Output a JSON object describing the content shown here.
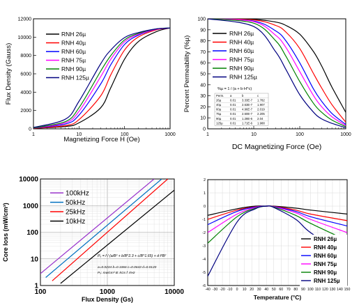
{
  "chart_data": [
    {
      "type": "line",
      "xlabel": "Magnetizing Force H (Oe)",
      "ylabel": "Flux Density (Gauss)",
      "xscale": "log",
      "xlim": [
        1,
        1000
      ],
      "ylim": [
        0,
        12000
      ],
      "xticks": [
        "1",
        "10",
        "100",
        "1000"
      ],
      "yticks": [
        "0",
        "2000",
        "4000",
        "6000",
        "8000",
        "10000",
        "12000"
      ],
      "legend_position": "top-left",
      "series": [
        {
          "name": "RNH 26µ",
          "color": "#000000",
          "x": [
            1,
            5,
            10,
            30,
            50,
            100,
            200,
            500,
            1000
          ],
          "values": [
            50,
            250,
            650,
            2300,
            4500,
            7600,
            9500,
            10600,
            11000
          ]
        },
        {
          "name": "RNH 40µ",
          "color": "#ff0000",
          "x": [
            1,
            5,
            10,
            30,
            50,
            100,
            200,
            500,
            1000
          ],
          "values": [
            60,
            350,
            1000,
            3600,
            5900,
            8600,
            10000,
            10800,
            11000
          ]
        },
        {
          "name": "RNH 60µ",
          "color": "#0000ff",
          "x": [
            1,
            5,
            10,
            30,
            50,
            100,
            200,
            500,
            1000
          ],
          "values": [
            80,
            520,
            1500,
            4900,
            7000,
            9200,
            10200,
            10850,
            11000
          ]
        },
        {
          "name": "RNH 75µ",
          "color": "#ff00ff",
          "x": [
            1,
            5,
            10,
            30,
            50,
            100,
            200,
            500,
            1000
          ],
          "values": [
            100,
            650,
            1900,
            5700,
            7600,
            9500,
            10300,
            10850,
            11000
          ]
        },
        {
          "name": "RNH 90µ",
          "color": "#008000",
          "x": [
            1,
            5,
            10,
            30,
            50,
            100,
            200,
            500,
            1000
          ],
          "values": [
            110,
            780,
            2300,
            6300,
            8000,
            9700,
            10400,
            10900,
            11000
          ]
        },
        {
          "name": "RNH 125µ",
          "color": "#000080",
          "x": [
            1,
            5,
            10,
            30,
            50,
            100,
            200,
            500,
            1000
          ],
          "values": [
            150,
            1050,
            3000,
            7100,
            8600,
            9950,
            10500,
            10900,
            11000
          ]
        }
      ]
    },
    {
      "type": "line",
      "xlabel": "DC Magnetizing Force (Oe)",
      "ylabel": "Percent Permeability (%µ)",
      "xscale": "log",
      "xlim": [
        1,
        1000
      ],
      "ylim": [
        0,
        100
      ],
      "xticks": [
        "1",
        "10",
        "100",
        "1000"
      ],
      "yticks": [
        "0",
        "10",
        "20",
        "30",
        "40",
        "50",
        "60",
        "70",
        "80",
        "90",
        "100"
      ],
      "legend_position": "top-left",
      "series": [
        {
          "name": "RNH 26µ",
          "color": "#000000",
          "x": [
            1,
            10,
            30,
            50,
            100,
            200,
            300,
            500,
            1000
          ],
          "values": [
            100,
            99.5,
            97,
            94,
            86,
            70,
            57,
            38,
            15
          ]
        },
        {
          "name": "RNH 40µ",
          "color": "#ff0000",
          "x": [
            1,
            10,
            30,
            50,
            100,
            200,
            300,
            500,
            1000
          ],
          "values": [
            100,
            99,
            94,
            88,
            73,
            50,
            37,
            22,
            6
          ]
        },
        {
          "name": "RNH 60µ",
          "color": "#0000ff",
          "x": [
            1,
            10,
            30,
            50,
            100,
            200,
            300,
            500,
            1000
          ],
          "values": [
            100,
            98,
            89,
            80,
            60,
            36,
            25,
            14,
            4
          ]
        },
        {
          "name": "RNH 75µ",
          "color": "#ff00ff",
          "x": [
            1,
            10,
            30,
            50,
            100,
            200,
            300,
            500,
            1000
          ],
          "values": [
            100,
            97.5,
            85,
            74,
            52,
            30,
            20,
            11,
            3
          ]
        },
        {
          "name": "RNH 90µ",
          "color": "#008000",
          "x": [
            1,
            10,
            30,
            50,
            100,
            200,
            300,
            500,
            1000
          ],
          "values": [
            100,
            96,
            80,
            66,
            43,
            23,
            15,
            8,
            2
          ]
        },
        {
          "name": "RNH 125µ",
          "color": "#000080",
          "x": [
            1,
            10,
            30,
            50,
            100,
            200,
            300,
            500,
            1000
          ],
          "values": [
            100,
            93,
            70,
            54,
            31,
            15,
            9,
            5,
            1
          ]
        }
      ],
      "annotation": {
        "formula": "%µ = 1 / (a + b·H^c)",
        "table_headers": [
          "Perm.",
          "a",
          "b",
          "c"
        ],
        "table_rows": [
          [
            "26µ",
            "0.01",
            "3.33E-7",
            "1.782"
          ],
          [
            "40µ",
            "0.01",
            "2.63E-7",
            "1.907"
          ],
          [
            "60µ",
            "0.01",
            "4.96E-7",
            "2.019"
          ],
          [
            "75µ",
            "0.01",
            "2.60E-7",
            "2.205"
          ],
          [
            "90µ",
            "0.01",
            "1.28E-6",
            "2.04"
          ],
          [
            "125µ",
            "0.01",
            "1.71E-6",
            "1.988"
          ]
        ]
      }
    },
    {
      "type": "line",
      "xlabel": "Flux Density (Gs)",
      "ylabel": "Core loss (mW/cm³)",
      "xscale": "log",
      "yscale": "log",
      "xlim": [
        100,
        10000
      ],
      "ylim": [
        1,
        10000
      ],
      "xticks": [
        "100",
        "1000",
        "10000"
      ],
      "yticks": [
        "1",
        "10",
        "100",
        "1000",
        "10000"
      ],
      "grid": true,
      "legend_position": "top-left",
      "series": [
        {
          "name": "100kHz",
          "color": "#9933cc",
          "x": [
            100,
            5000
          ],
          "values": [
            2.8,
            10000
          ]
        },
        {
          "name": "50kHz",
          "color": "#0070c0",
          "x": [
            120,
            6500
          ],
          "values": [
            2.0,
            10000
          ]
        },
        {
          "name": "25kHz",
          "color": "#ff0000",
          "x": [
            150,
            8000
          ],
          "values": [
            1.5,
            10000
          ]
        },
        {
          "name": "10kHz",
          "color": "#000000",
          "x": [
            200,
            10000
          ],
          "values": [
            1.2,
            3800
          ]
        }
      ],
      "annotation": {
        "formula": "Pᵥ = f / (a/B³ + b/B^2.3 + c/B^1.65) + d·f²B²",
        "constants": "a=0.0234  b=0.1066  c=0.0643  d=0.0120",
        "units": "Pᵥ: mw/cm³  B: kGs  f: kHz"
      }
    },
    {
      "type": "line",
      "xlabel": "Temperature (°C)",
      "ylabel": "",
      "xlim": [
        -40,
        150
      ],
      "ylim": [
        -6,
        2
      ],
      "xticks": [
        "-40",
        "-30",
        "-20",
        "-10",
        "0",
        "10",
        "20",
        "30",
        "40",
        "50",
        "60",
        "70",
        "80",
        "90",
        "100",
        "110",
        "120",
        "130",
        "140",
        "150"
      ],
      "yticks": [
        "-6",
        "-5",
        "-4",
        "-3",
        "-2",
        "-1",
        "0",
        "1",
        "2"
      ],
      "grid": true,
      "legend_position": "bottom-right",
      "series": [
        {
          "name": "RNH 26µ",
          "color": "#000000",
          "x": [
            -40,
            0,
            25,
            40,
            50,
            80,
            100,
            150
          ],
          "values": [
            -0.7,
            -0.2,
            0.0,
            0.0,
            0.0,
            -0.15,
            -0.3,
            -0.6
          ]
        },
        {
          "name": "RNH 40µ",
          "color": "#ff0000",
          "x": [
            -40,
            0,
            25,
            40,
            50,
            80,
            100,
            150
          ],
          "values": [
            -1.0,
            -0.3,
            -0.05,
            0.0,
            -0.02,
            -0.3,
            -0.6,
            -1.1
          ]
        },
        {
          "name": "RNH 60µ",
          "color": "#0000ff",
          "x": [
            -40,
            0,
            25,
            40,
            50,
            80,
            100,
            150
          ],
          "values": [
            -1.4,
            -0.4,
            -0.07,
            0.0,
            -0.03,
            -0.4,
            -0.8,
            -1.5
          ]
        },
        {
          "name": "RNH 75µ",
          "color": "#ff00ff",
          "x": [
            -40,
            0,
            25,
            40,
            50,
            80,
            100,
            150
          ],
          "values": [
            -2.0,
            -0.6,
            -0.1,
            0.0,
            -0.05,
            -0.5,
            -1.0,
            -2.0
          ]
        },
        {
          "name": "RNH 90µ",
          "color": "#008000",
          "x": [
            -40,
            0,
            25,
            40,
            50,
            80,
            100,
            150
          ],
          "values": [
            -2.8,
            -0.8,
            -0.15,
            0.0,
            -0.07,
            -0.7,
            -1.3,
            -2.6
          ]
        },
        {
          "name": "RNH 125µ",
          "color": "#000080",
          "x": [
            -40,
            0,
            25,
            40,
            50,
            80,
            100,
            150
          ],
          "values": [
            -5.3,
            -1.2,
            -0.2,
            0.0,
            -0.1,
            -1.0,
            -2.0,
            -3.8
          ]
        }
      ]
    }
  ]
}
